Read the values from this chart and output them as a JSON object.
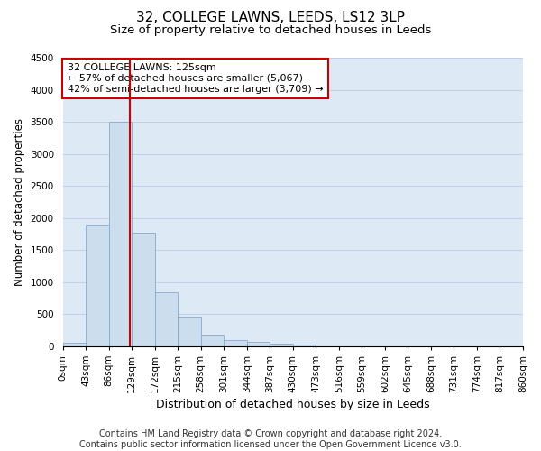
{
  "title": "32, COLLEGE LAWNS, LEEDS, LS12 3LP",
  "subtitle": "Size of property relative to detached houses in Leeds",
  "xlabel": "Distribution of detached houses by size in Leeds",
  "ylabel": "Number of detached properties",
  "bar_values": [
    50,
    1900,
    3500,
    1775,
    840,
    460,
    185,
    100,
    70,
    45,
    30,
    0,
    0,
    0,
    0,
    0,
    0,
    0,
    0,
    0
  ],
  "bar_labels": [
    "0sqm",
    "43sqm",
    "86sqm",
    "129sqm",
    "172sqm",
    "215sqm",
    "258sqm",
    "301sqm",
    "344sqm",
    "387sqm",
    "430sqm",
    "473sqm",
    "516sqm",
    "559sqm",
    "602sqm",
    "645sqm",
    "688sqm",
    "731sqm",
    "774sqm",
    "817sqm",
    "860sqm"
  ],
  "bar_color": "#ccdded",
  "bar_edge_color": "#88aacc",
  "vline_color": "#cc0000",
  "annotation_text": "32 COLLEGE LAWNS: 125sqm\n← 57% of detached houses are smaller (5,067)\n42% of semi-detached houses are larger (3,709) →",
  "annotation_box_color": "#ffffff",
  "annotation_box_edge": "#cc0000",
  "ylim": [
    0,
    4500
  ],
  "yticks": [
    0,
    500,
    1000,
    1500,
    2000,
    2500,
    3000,
    3500,
    4000,
    4500
  ],
  "grid_color": "#c0d0e8",
  "background_color": "#ddeaf6",
  "footer_text": "Contains HM Land Registry data © Crown copyright and database right 2024.\nContains public sector information licensed under the Open Government Licence v3.0.",
  "title_fontsize": 11,
  "subtitle_fontsize": 9.5,
  "xlabel_fontsize": 9,
  "ylabel_fontsize": 8.5,
  "tick_fontsize": 7.5,
  "footer_fontsize": 7,
  "annot_fontsize": 8
}
